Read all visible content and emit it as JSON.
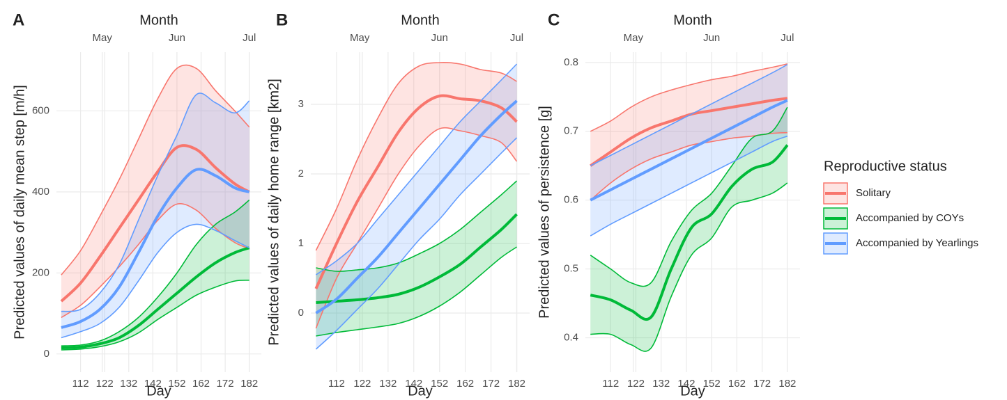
{
  "chart_data": [
    {
      "type": "line",
      "panel_label": "A",
      "x2label": "Month",
      "xlabel": "Day",
      "ylabel": "Predicted values of daily mean step [m/h]",
      "legend_title": "Reproductive status",
      "legend": "right",
      "grid": true,
      "x": [
        104,
        112,
        120,
        128,
        136,
        144,
        152,
        160,
        168,
        176,
        182
      ],
      "xlim": [
        102,
        187
      ],
      "xticks": [
        112,
        122,
        132,
        142,
        152,
        162,
        172,
        182
      ],
      "x2ticks": [
        {
          "value": 121,
          "label": "May"
        },
        {
          "value": 152,
          "label": "Jun"
        },
        {
          "value": 182,
          "label": "Jul"
        }
      ],
      "ylim": [
        -45,
        745
      ],
      "yticks": [
        0,
        200,
        400,
        600
      ],
      "series": [
        {
          "name": "Solitary",
          "color": "#F8766D",
          "values": [
            130,
            175,
            240,
            310,
            380,
            450,
            510,
            505,
            460,
            420,
            400
          ],
          "lower": [
            90,
            120,
            165,
            215,
            270,
            330,
            370,
            355,
            310,
            275,
            260
          ],
          "upper": [
            195,
            255,
            340,
            430,
            530,
            630,
            705,
            705,
            650,
            600,
            560
          ]
        },
        {
          "name": "Accompanied by COYs",
          "color": "#00BA38",
          "values": [
            15,
            17,
            25,
            40,
            70,
            110,
            150,
            190,
            225,
            250,
            262
          ],
          "lower": [
            10,
            12,
            18,
            30,
            52,
            85,
            115,
            145,
            165,
            180,
            182
          ],
          "upper": [
            20,
            22,
            32,
            55,
            90,
            140,
            200,
            270,
            320,
            350,
            380
          ]
        },
        {
          "name": "Accompanied by Yearlings",
          "color": "#619CFF",
          "values": [
            65,
            80,
            110,
            165,
            250,
            340,
            410,
            455,
            440,
            410,
            400
          ],
          "lower": [
            40,
            55,
            75,
            115,
            180,
            250,
            300,
            320,
            305,
            280,
            262
          ],
          "upper": [
            105,
            110,
            150,
            220,
            330,
            440,
            540,
            640,
            620,
            595,
            625
          ]
        }
      ]
    },
    {
      "type": "line",
      "panel_label": "B",
      "x2label": "Month",
      "xlabel": "Day",
      "ylabel": "Predicted values of daily home range [km2]",
      "grid": true,
      "x": [
        104,
        112,
        120,
        128,
        136,
        144,
        152,
        160,
        168,
        176,
        182
      ],
      "xlim": [
        102,
        187
      ],
      "xticks": [
        112,
        122,
        132,
        142,
        152,
        162,
        172,
        182
      ],
      "x2ticks": [
        {
          "value": 121,
          "label": "May"
        },
        {
          "value": 152,
          "label": "Jun"
        },
        {
          "value": 182,
          "label": "Jul"
        }
      ],
      "ylim": [
        -0.85,
        3.75
      ],
      "yticks": [
        0,
        1,
        2,
        3
      ],
      "series": [
        {
          "name": "Solitary",
          "color": "#F8766D",
          "values": [
            0.35,
            1.0,
            1.6,
            2.1,
            2.6,
            2.95,
            3.12,
            3.08,
            3.05,
            2.95,
            2.75
          ],
          "lower": [
            -0.22,
            0.5,
            1.0,
            1.5,
            2.0,
            2.4,
            2.65,
            2.62,
            2.55,
            2.45,
            2.18
          ],
          "upper": [
            0.9,
            1.5,
            2.2,
            2.8,
            3.3,
            3.55,
            3.6,
            3.58,
            3.5,
            3.45,
            3.33
          ]
        },
        {
          "name": "Accompanied by COYs",
          "color": "#00BA38",
          "values": [
            0.15,
            0.17,
            0.19,
            0.22,
            0.27,
            0.37,
            0.52,
            0.7,
            0.95,
            1.2,
            1.42
          ],
          "lower": [
            -0.33,
            -0.28,
            -0.24,
            -0.2,
            -0.15,
            -0.05,
            0.1,
            0.3,
            0.55,
            0.8,
            0.95
          ],
          "upper": [
            0.65,
            0.6,
            0.62,
            0.65,
            0.72,
            0.85,
            1.0,
            1.2,
            1.45,
            1.7,
            1.9
          ]
        },
        {
          "name": "Accompanied by Yearlings",
          "color": "#619CFF",
          "values": [
            0.0,
            0.2,
            0.5,
            0.8,
            1.15,
            1.5,
            1.85,
            2.2,
            2.55,
            2.85,
            3.05
          ],
          "lower": [
            -0.52,
            -0.25,
            0.05,
            0.35,
            0.7,
            1.05,
            1.35,
            1.7,
            2.0,
            2.3,
            2.52
          ],
          "upper": [
            0.55,
            0.75,
            1.0,
            1.35,
            1.7,
            2.05,
            2.4,
            2.75,
            3.05,
            3.35,
            3.58
          ]
        }
      ]
    },
    {
      "type": "line",
      "panel_label": "C",
      "x2label": "Month",
      "xlabel": "Day",
      "ylabel": "Predicted values of persistence [g]",
      "grid": true,
      "x": [
        104,
        112,
        120,
        128,
        136,
        144,
        152,
        160,
        168,
        176,
        182
      ],
      "xlim": [
        102,
        187
      ],
      "xticks": [
        112,
        122,
        132,
        142,
        152,
        162,
        172,
        182
      ],
      "x2ticks": [
        {
          "value": 121,
          "label": "May"
        },
        {
          "value": 152,
          "label": "Jun"
        },
        {
          "value": 182,
          "label": "Jul"
        }
      ],
      "ylim": [
        0.35,
        0.815
      ],
      "yticks": [
        0.4,
        0.5,
        0.6,
        0.7,
        0.8
      ],
      "series": [
        {
          "name": "Solitary",
          "color": "#F8766D",
          "values": [
            0.65,
            0.67,
            0.69,
            0.705,
            0.715,
            0.725,
            0.73,
            0.735,
            0.74,
            0.745,
            0.748
          ],
          "lower": [
            0.6,
            0.625,
            0.645,
            0.66,
            0.67,
            0.68,
            0.685,
            0.69,
            0.693,
            0.697,
            0.698
          ],
          "upper": [
            0.7,
            0.715,
            0.735,
            0.75,
            0.76,
            0.768,
            0.775,
            0.78,
            0.787,
            0.793,
            0.798
          ]
        },
        {
          "name": "Accompanied by COYs",
          "color": "#00BA38",
          "values": [
            0.462,
            0.455,
            0.44,
            0.43,
            0.5,
            0.56,
            0.58,
            0.62,
            0.645,
            0.655,
            0.68
          ],
          "lower": [
            0.405,
            0.405,
            0.39,
            0.385,
            0.46,
            0.52,
            0.545,
            0.59,
            0.6,
            0.61,
            0.625
          ],
          "upper": [
            0.52,
            0.5,
            0.48,
            0.48,
            0.54,
            0.585,
            0.61,
            0.65,
            0.69,
            0.7,
            0.735
          ]
        },
        {
          "name": "Accompanied by Yearlings",
          "color": "#619CFF",
          "values": [
            0.6,
            0.615,
            0.63,
            0.645,
            0.66,
            0.675,
            0.69,
            0.705,
            0.72,
            0.735,
            0.745
          ],
          "lower": [
            0.548,
            0.565,
            0.58,
            0.595,
            0.61,
            0.625,
            0.64,
            0.655,
            0.67,
            0.685,
            0.693
          ],
          "upper": [
            0.65,
            0.665,
            0.68,
            0.695,
            0.71,
            0.725,
            0.74,
            0.755,
            0.77,
            0.785,
            0.797
          ]
        }
      ]
    }
  ]
}
